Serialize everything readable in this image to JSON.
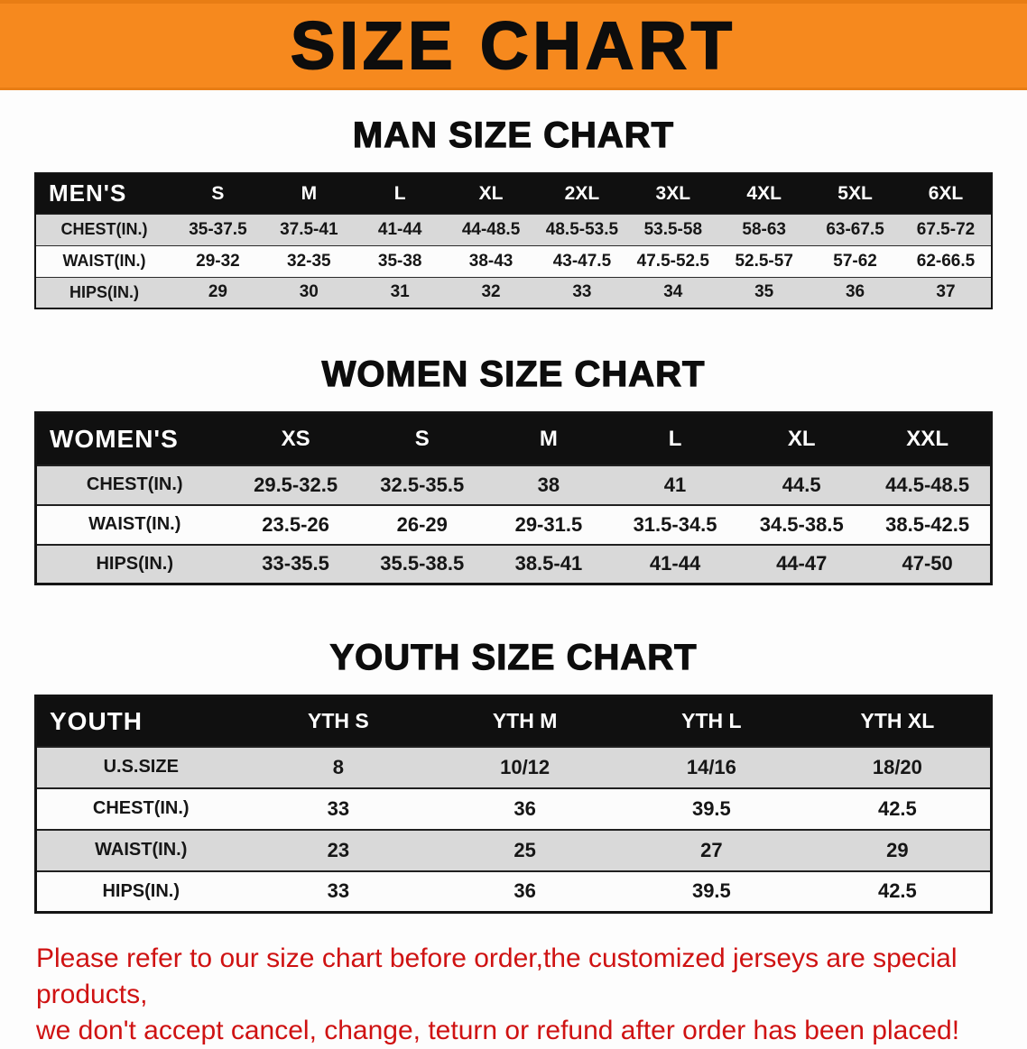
{
  "banner": {
    "title": "SIZE CHART"
  },
  "colors": {
    "banner_bg": "#f6891e",
    "header_bg": "#101010",
    "stripe": "#d9d9d9",
    "disclaimer_color": "#cf1212"
  },
  "tables": [
    {
      "id": "men",
      "heading": "MAN SIZE CHART",
      "corner": "MEN'S",
      "columns": [
        "S",
        "M",
        "L",
        "XL",
        "2XL",
        "3XL",
        "4XL",
        "5XL",
        "6XL"
      ],
      "rows": [
        {
          "label": "CHEST(IN.)",
          "values": [
            "35-37.5",
            "37.5-41",
            "41-44",
            "44-48.5",
            "48.5-53.5",
            "53.5-58",
            "58-63",
            "63-67.5",
            "67.5-72"
          ]
        },
        {
          "label": "WAIST(IN.)",
          "values": [
            "29-32",
            "32-35",
            "35-38",
            "38-43",
            "43-47.5",
            "47.5-52.5",
            "52.5-57",
            "57-62",
            "62-66.5"
          ]
        },
        {
          "label": "HIPS(IN.)",
          "values": [
            "29",
            "30",
            "31",
            "32",
            "33",
            "34",
            "35",
            "36",
            "37"
          ]
        }
      ]
    },
    {
      "id": "women",
      "heading": "WOMEN SIZE CHART",
      "corner": "WOMEN'S",
      "columns": [
        "XS",
        "S",
        "M",
        "L",
        "XL",
        "XXL"
      ],
      "rows": [
        {
          "label": "CHEST(IN.)",
          "values": [
            "29.5-32.5",
            "32.5-35.5",
            "38",
            "41",
            "44.5",
            "44.5-48.5"
          ]
        },
        {
          "label": "WAIST(IN.)",
          "values": [
            "23.5-26",
            "26-29",
            "29-31.5",
            "31.5-34.5",
            "34.5-38.5",
            "38.5-42.5"
          ]
        },
        {
          "label": "HIPS(IN.)",
          "values": [
            "33-35.5",
            "35.5-38.5",
            "38.5-41",
            "41-44",
            "44-47",
            "47-50"
          ]
        }
      ]
    },
    {
      "id": "youth",
      "heading": "YOUTH SIZE CHART",
      "corner": "YOUTH",
      "columns": [
        "YTH S",
        "YTH M",
        "YTH L",
        "YTH XL"
      ],
      "rows": [
        {
          "label": "U.S.SIZE",
          "values": [
            "8",
            "10/12",
            "14/16",
            "18/20"
          ]
        },
        {
          "label": "CHEST(IN.)",
          "values": [
            "33",
            "36",
            "39.5",
            "42.5"
          ]
        },
        {
          "label": "WAIST(IN.)",
          "values": [
            "23",
            "25",
            "27",
            "29"
          ]
        },
        {
          "label": "HIPS(IN.)",
          "values": [
            "33",
            "36",
            "39.5",
            "42.5"
          ]
        }
      ]
    }
  ],
  "disclaimer": {
    "line1": "Please refer to our size chart before order,the customized jerseys are special products,",
    "line2": "we don't accept cancel, change, teturn or refund after order has been placed!"
  }
}
